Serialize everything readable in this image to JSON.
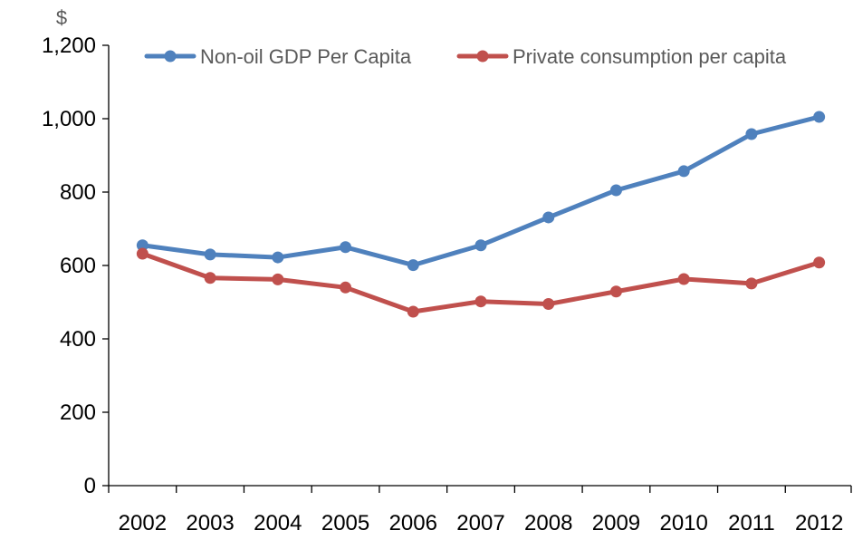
{
  "chart_data": {
    "type": "line",
    "title": "",
    "xlabel": "",
    "ylabel": "$",
    "ylim": [
      0,
      1200
    ],
    "yticks": [
      0,
      200,
      400,
      600,
      800,
      1000,
      1200
    ],
    "ytick_labels": [
      "0",
      "200",
      "400",
      "600",
      "800",
      "1,000",
      "1,200"
    ],
    "grid": false,
    "legend_position": "top",
    "categories": [
      "2002",
      "2003",
      "2004",
      "2005",
      "2006",
      "2007",
      "2008",
      "2009",
      "2010",
      "2011",
      "2012"
    ],
    "series": [
      {
        "name": "Non-oil GDP Per Capita",
        "color": "#4F81BD",
        "values": [
          655,
          630,
          622,
          650,
          601,
          655,
          731,
          805,
          857,
          958,
          1005
        ]
      },
      {
        "name": "Private consumption per capita",
        "color": "#C0504D",
        "values": [
          632,
          566,
          562,
          540,
          474,
          502,
          495,
          529,
          563,
          551,
          608
        ]
      }
    ]
  }
}
